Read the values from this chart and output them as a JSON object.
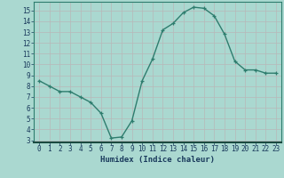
{
  "x": [
    0,
    1,
    2,
    3,
    4,
    5,
    6,
    7,
    8,
    9,
    10,
    11,
    12,
    13,
    14,
    15,
    16,
    17,
    18,
    19,
    20,
    21,
    22,
    23
  ],
  "y": [
    8.5,
    8.0,
    7.5,
    7.5,
    7.0,
    6.5,
    5.5,
    3.2,
    3.3,
    4.8,
    8.5,
    10.5,
    13.2,
    13.8,
    14.8,
    15.3,
    15.2,
    14.5,
    12.8,
    10.3,
    9.5,
    9.5,
    9.2,
    9.2
  ],
  "xlabel": "Humidex (Indice chaleur)",
  "ylabel": "",
  "xlim": [
    -0.5,
    23.5
  ],
  "ylim": [
    2.8,
    15.8
  ],
  "yticks": [
    3,
    4,
    5,
    6,
    7,
    8,
    9,
    10,
    11,
    12,
    13,
    14,
    15
  ],
  "xticks": [
    0,
    1,
    2,
    3,
    4,
    5,
    6,
    7,
    8,
    9,
    10,
    11,
    12,
    13,
    14,
    15,
    16,
    17,
    18,
    19,
    20,
    21,
    22,
    23
  ],
  "line_color": "#2e7d6e",
  "marker": "+",
  "bg_color": "#aad8d0",
  "grid_color": "#b8b8b8",
  "font_color": "#1a3a5c",
  "xlabel_fontsize": 6.5,
  "tick_fontsize": 5.5
}
